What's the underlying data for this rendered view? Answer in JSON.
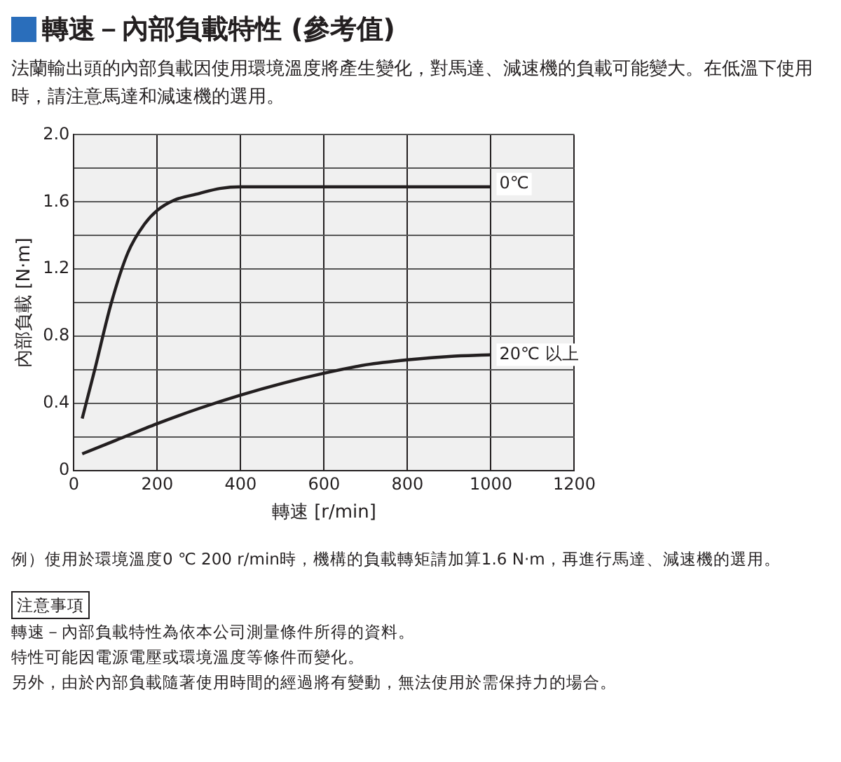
{
  "chart_data": {
    "type": "line",
    "title": "轉速－內部負載特性 (參考值)",
    "subtitle": "法蘭輸出頭的內部負載因使用環境溫度將產生變化，對馬達、減速機的負載可能變大。在低溫下使用時，請注意馬達和減速機的選用。",
    "xlabel": "轉速 [r/min]",
    "ylabel": "內部負載 [N·m]",
    "series": [
      {
        "name": "0℃",
        "color": "#231f20",
        "x": [
          20,
          50,
          90,
          130,
          170,
          200,
          240,
          300,
          350,
          400,
          1000
        ],
        "values": [
          0.31,
          0.6,
          1.0,
          1.3,
          1.47,
          1.55,
          1.61,
          1.65,
          1.68,
          1.69,
          1.69
        ]
      },
      {
        "name": "20℃ 以上",
        "color": "#231f20",
        "x": [
          20,
          100,
          200,
          300,
          400,
          500,
          600,
          700,
          800,
          900,
          1000
        ],
        "values": [
          0.1,
          0.18,
          0.28,
          0.37,
          0.45,
          0.52,
          0.58,
          0.63,
          0.66,
          0.68,
          0.69
        ]
      }
    ],
    "xlim": [
      0,
      1200
    ],
    "xticks": [
      0,
      200,
      400,
      600,
      800,
      1000,
      1200
    ],
    "ylim": [
      0,
      2.0
    ],
    "yticks": [
      0,
      {
        "value": 0.2,
        "label": null
      },
      0.4,
      {
        "value": 0.6,
        "label": null
      },
      0.8,
      {
        "value": 1.0,
        "label": null
      },
      1.2,
      {
        "value": 1.4,
        "label": null
      },
      1.6,
      {
        "value": 1.8,
        "label": null
      },
      {
        "value": 2.0,
        "label": "2.0"
      }
    ],
    "grid": true,
    "legend": false,
    "marker": "none",
    "line_style": "solid",
    "annotations": [
      "例）使用於環境溫度0 ℃ 200 r/min時，機構的負載轉矩請加算1.6 N·m，再進行馬達、減速機的選用。",
      "注意事項",
      "轉速－內部負載特性為依本公司測量條件所得的資料。",
      "特性可能因電源電壓或環境溫度等條件而變化。",
      "另外，由於內部負載隨著使用時間的經過將有變動，無法使用於需保持力的場合。"
    ]
  }
}
